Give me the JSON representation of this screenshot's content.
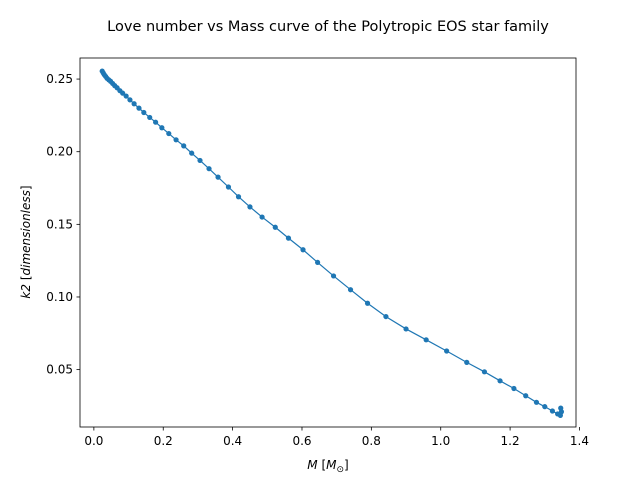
{
  "chart_data": {
    "type": "line",
    "title": "Love number vs Mass curve of the Polytropic EOS star family",
    "xlabel": {
      "var": "M",
      "open": " [",
      "unit": "M",
      "sub": "⊙",
      "close": "]"
    },
    "ylabel": {
      "var": "k2",
      "open": " [",
      "unit": "dimensionless",
      "close": "]"
    },
    "xlim": [
      -0.04,
      1.39
    ],
    "ylim": [
      0.0105,
      0.2645
    ],
    "xticks": [
      0.0,
      0.2,
      0.4,
      0.6,
      0.8,
      1.0,
      1.2,
      1.4
    ],
    "xtick_labels": [
      "0.0",
      "0.2",
      "0.4",
      "0.6",
      "0.8",
      "1.0",
      "1.2",
      "1.4"
    ],
    "yticks": [
      0.05,
      0.1,
      0.15,
      0.2,
      0.25
    ],
    "ytick_labels": [
      "0.05",
      "0.10",
      "0.15",
      "0.20",
      "0.25"
    ],
    "grid": false,
    "legend": "none",
    "color": "#1f77b4",
    "markers": true,
    "series": [
      {
        "x": [
          0.024,
          0.027,
          0.03,
          0.034,
          0.038,
          0.043,
          0.048,
          0.054,
          0.06,
          0.067,
          0.075,
          0.083,
          0.093,
          0.104,
          0.116,
          0.13,
          0.144,
          0.161,
          0.178,
          0.196,
          0.216,
          0.237,
          0.259,
          0.282,
          0.306,
          0.332,
          0.358,
          0.388,
          0.417,
          0.45,
          0.485,
          0.523,
          0.561,
          0.603,
          0.645,
          0.691,
          0.74,
          0.789,
          0.842,
          0.9,
          0.958,
          1.017,
          1.075,
          1.126,
          1.171,
          1.211,
          1.245,
          1.276,
          1.3,
          1.322,
          1.337,
          1.345,
          1.348,
          1.346
        ],
        "y": [
          0.2555,
          0.2542,
          0.253,
          0.2518,
          0.2505,
          0.2495,
          0.2485,
          0.247,
          0.2455,
          0.244,
          0.242,
          0.2403,
          0.2383,
          0.2357,
          0.233,
          0.23,
          0.227,
          0.2236,
          0.2203,
          0.2165,
          0.2125,
          0.2082,
          0.204,
          0.199,
          0.194,
          0.1883,
          0.1825,
          0.1757,
          0.169,
          0.162,
          0.155,
          0.148,
          0.1405,
          0.1325,
          0.1238,
          0.1145,
          0.105,
          0.0957,
          0.0865,
          0.078,
          0.0705,
          0.0628,
          0.055,
          0.0485,
          0.0423,
          0.037,
          0.032,
          0.0275,
          0.0245,
          0.0215,
          0.0195,
          0.0185,
          0.021,
          0.0235
        ]
      }
    ]
  }
}
